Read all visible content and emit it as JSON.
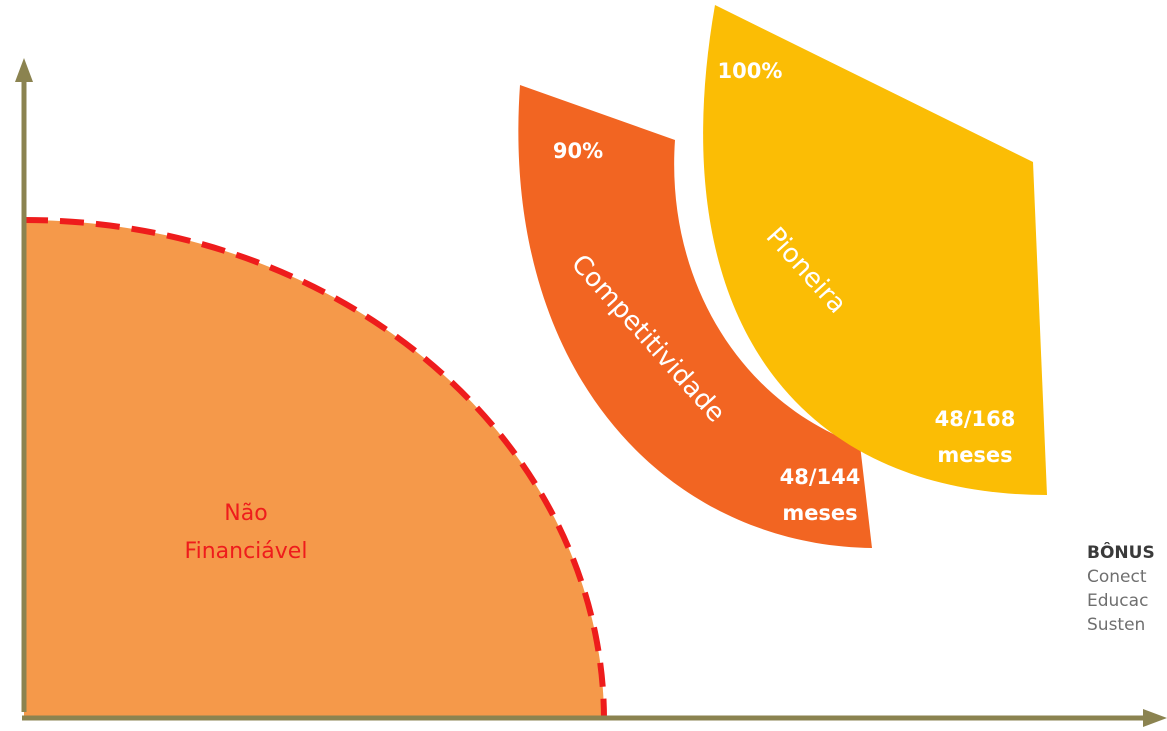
{
  "colors": {
    "axis": "#8b8350",
    "nao_financiavel_fill": "#f5994a",
    "nao_financiavel_border": "#ee1c1c",
    "competitividade_fill": "#f26522",
    "pioneira_fill": "#fbbd05",
    "label_red": "#ee1c1c",
    "label_white": "#ffffff",
    "bonus_text": "#6f6f6f"
  },
  "zones": {
    "nao_financiavel": {
      "label_line1": "Não",
      "label_line2": "Financiável"
    },
    "competitividade": {
      "name": "Competitividade",
      "percent": "90%",
      "term_line1": "48/144",
      "term_line2": "meses"
    },
    "pioneira": {
      "name": "Pioneira",
      "percent": "100%",
      "term_line1": "48/168",
      "term_line2": "meses"
    }
  },
  "bonus": {
    "title": "BÔNUS",
    "items": [
      "Conect",
      "Educac",
      "Susten"
    ]
  }
}
